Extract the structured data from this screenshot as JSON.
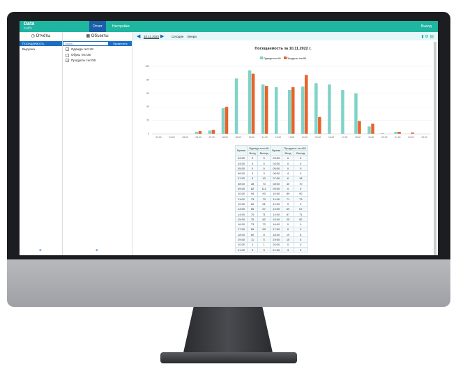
{
  "header": {
    "logo_top": "Data",
    "logo_bottom": "traffic",
    "tabs": [
      {
        "label": "Отчет",
        "active": true
      },
      {
        "label": "Настройки"
      }
    ],
    "logout": "Выход"
  },
  "reports": {
    "title": "Отчёты",
    "items": [
      {
        "label": "Посещаемость",
        "selected": true
      },
      {
        "label": "Выручка"
      }
    ]
  },
  "objects": {
    "title": "Объекты",
    "search_placeholder": "Поиск...",
    "apply": "Применить",
    "items": [
      {
        "label": "Одежда тест48",
        "checked": true
      },
      {
        "label": "Обувь тест35",
        "checked": false
      },
      {
        "label": "Продукты тест55",
        "checked": true
      }
    ]
  },
  "datenav": {
    "date": "10.11.2022",
    "today": "Сегодня",
    "yesterday": "Вчера"
  },
  "colors": {
    "header": "#1fb5a0",
    "accent": "#1a6fc4",
    "series1": "#7fd3c7",
    "series2": "#e8622a"
  },
  "chart_data": {
    "type": "bar",
    "title": "Посещаемость за 10.11.2022 г.",
    "ylim": [
      0,
      100
    ],
    "yticks": [
      0,
      20,
      40,
      60,
      80,
      100
    ],
    "legend": "top",
    "grid": true,
    "categories": [
      "03:00",
      "04:00",
      "05:00",
      "06:00",
      "07:00",
      "08:00",
      "09:00",
      "10:00",
      "11:00",
      "12:00",
      "13:00",
      "14:00",
      "15:00",
      "16:00",
      "17:00",
      "18:00",
      "19:00",
      "20:00",
      "21:00",
      "22:00",
      "23:00"
    ],
    "series": [
      {
        "name": "Одежда тест48",
        "values": [
          0,
          0,
          0,
          3,
          5,
          38,
          82,
          94,
          73,
          69,
          65,
          70,
          75,
          73,
          65,
          60,
          11,
          1,
          3,
          0,
          0
        ]
      },
      {
        "name": "Продукты тест55",
        "values": [
          0,
          0,
          0,
          4,
          6,
          40,
          0,
          89,
          71,
          0,
          69,
          87,
          25,
          0,
          0,
          19,
          15,
          0,
          3,
          2,
          0
        ]
      }
    ]
  },
  "table": {
    "time_header": "Время",
    "in": "Вход",
    "out": "Выход",
    "groups": [
      {
        "name": "Одежда тест48",
        "rows": [
          [
            "03:00",
            0,
            0
          ],
          [
            "04:00",
            0,
            0
          ],
          [
            "05:00",
            0,
            0
          ],
          [
            "06:00",
            3,
            3
          ],
          [
            "07:00",
            5,
            10
          ],
          [
            "08:00",
            38,
            70
          ],
          [
            "09:00",
            82,
            111
          ],
          [
            "10:00",
            94,
            90
          ],
          [
            "11:00",
            73,
            73
          ],
          [
            "12:00",
            69,
            61
          ],
          [
            "13:00",
            65,
            67
          ],
          [
            "14:00",
            70,
            71
          ],
          [
            "15:00",
            75,
            82
          ],
          [
            "16:00",
            73,
            72
          ],
          [
            "17:00",
            65,
            69
          ],
          [
            "18:00",
            60,
            8
          ],
          [
            "19:00",
            11,
            5
          ],
          [
            "20:00",
            1,
            1
          ],
          [
            "21:00",
            3,
            3
          ]
        ]
      },
      {
        "name": "Продукты тест55",
        "rows": [
          [
            "03:00",
            0,
            0
          ],
          [
            "04:00",
            0,
            0
          ],
          [
            "05:00",
            0,
            0
          ],
          [
            "06:00",
            4,
            3
          ],
          [
            "07:00",
            6,
            18
          ],
          [
            "08:00",
            40,
            70
          ],
          [
            "09:00",
            0,
            0
          ],
          [
            "10:00",
            89,
            90
          ],
          [
            "11:00",
            71,
            73
          ],
          [
            "12:00",
            0,
            0
          ],
          [
            "13:00",
            69,
            67
          ],
          [
            "14:00",
            87,
            71
          ],
          [
            "15:00",
            25,
            82
          ],
          [
            "16:00",
            0,
            0
          ],
          [
            "17:00",
            0,
            0
          ],
          [
            "18:00",
            19,
            8
          ],
          [
            "19:00",
            15,
            5
          ],
          [
            "20:00",
            0,
            0
          ],
          [
            "21:00",
            3,
            3
          ]
        ]
      }
    ]
  }
}
